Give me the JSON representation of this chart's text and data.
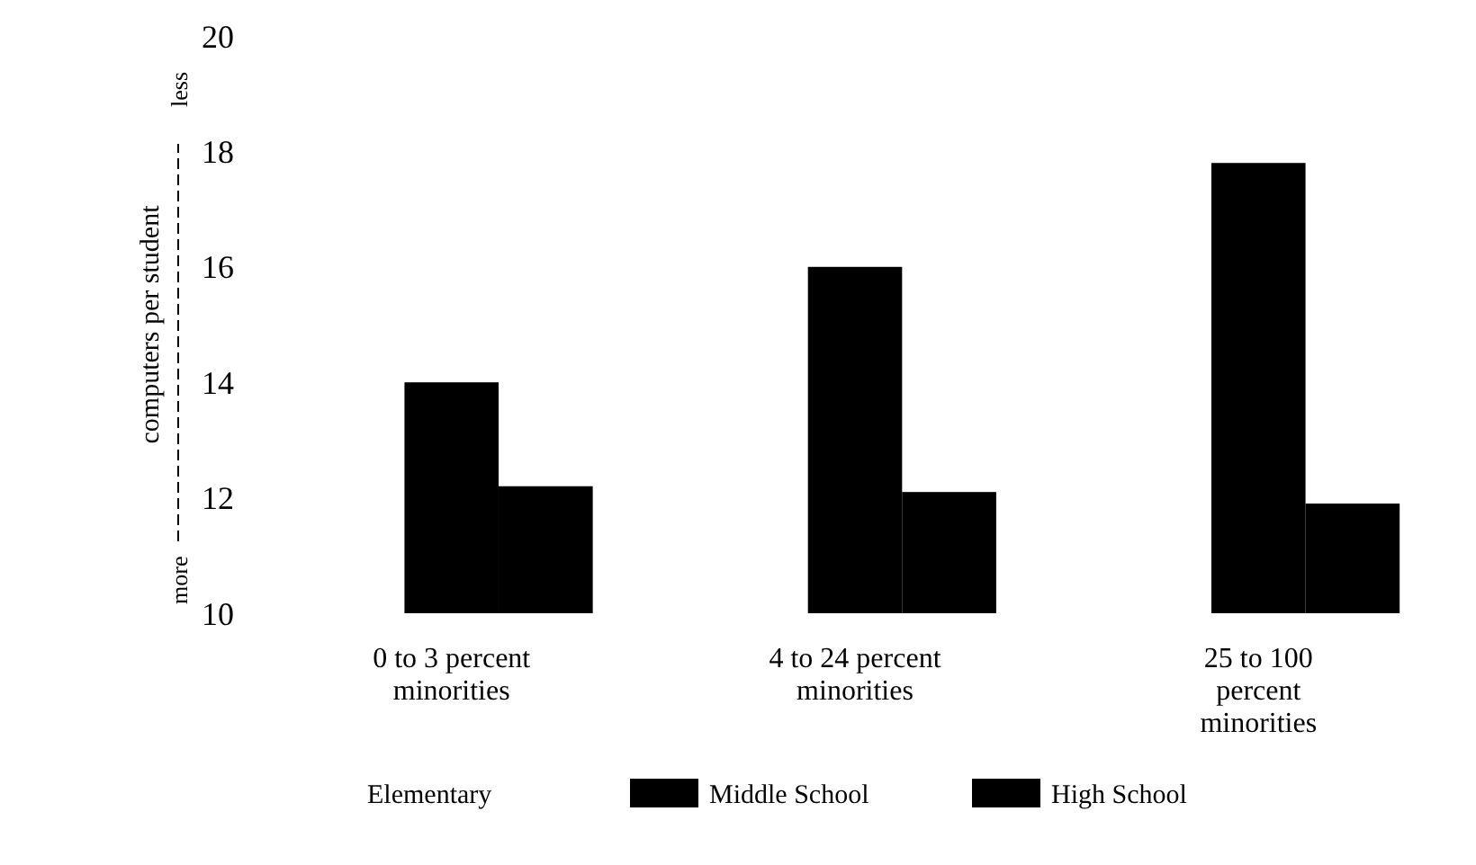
{
  "chart_data": {
    "type": "bar",
    "ylabel": "computers per student",
    "annotations": [
      "more",
      "less"
    ],
    "categories": [
      "0 to 3 percent minorities",
      "4 to 24 percent minorities",
      "25 to 100 percent minorities"
    ],
    "series": [
      {
        "name": "Elementary",
        "values": [
          null,
          null,
          null
        ]
      },
      {
        "name": "Middle School",
        "color": "#000000",
        "values": [
          14,
          16,
          17.8
        ]
      },
      {
        "name": "High School",
        "color": "#000000",
        "values": [
          12.2,
          12.1,
          11.9
        ]
      }
    ],
    "ylim": [
      10,
      20
    ],
    "yticks": [
      10,
      12,
      14,
      16,
      18,
      20
    ],
    "grid": false,
    "legend": "bottom"
  }
}
